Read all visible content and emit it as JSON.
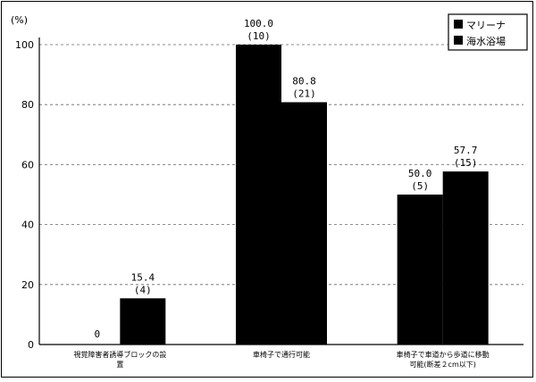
{
  "chart_data": {
    "type": "bar",
    "ylabel": "(%)",
    "ylim": [
      0,
      100
    ],
    "yticks": [
      "0",
      "20",
      "40",
      "60",
      "80",
      "100"
    ],
    "grid": true,
    "legend_position": "top-right",
    "categories": [
      [
        "視覚障害者誘導ブロックの設",
        "置"
      ],
      [
        "車椅子で通行可能"
      ],
      [
        "車椅子で車道から歩道に移動",
        "可能(断差２cm以下)"
      ]
    ],
    "series": [
      {
        "name": "マリーナ",
        "color": "#000000",
        "values": [
          0,
          100.0,
          50.0
        ],
        "value_labels": [
          "0",
          "100.0",
          "50.0"
        ],
        "count_labels": [
          "",
          "(10)",
          "(5)"
        ]
      },
      {
        "name": "海水浴場",
        "color": "#000000",
        "values": [
          15.4,
          80.8,
          57.7
        ],
        "value_labels": [
          "15.4",
          "80.8",
          "57.7"
        ],
        "count_labels": [
          "(4)",
          "(21)",
          "(15)"
        ]
      }
    ]
  }
}
